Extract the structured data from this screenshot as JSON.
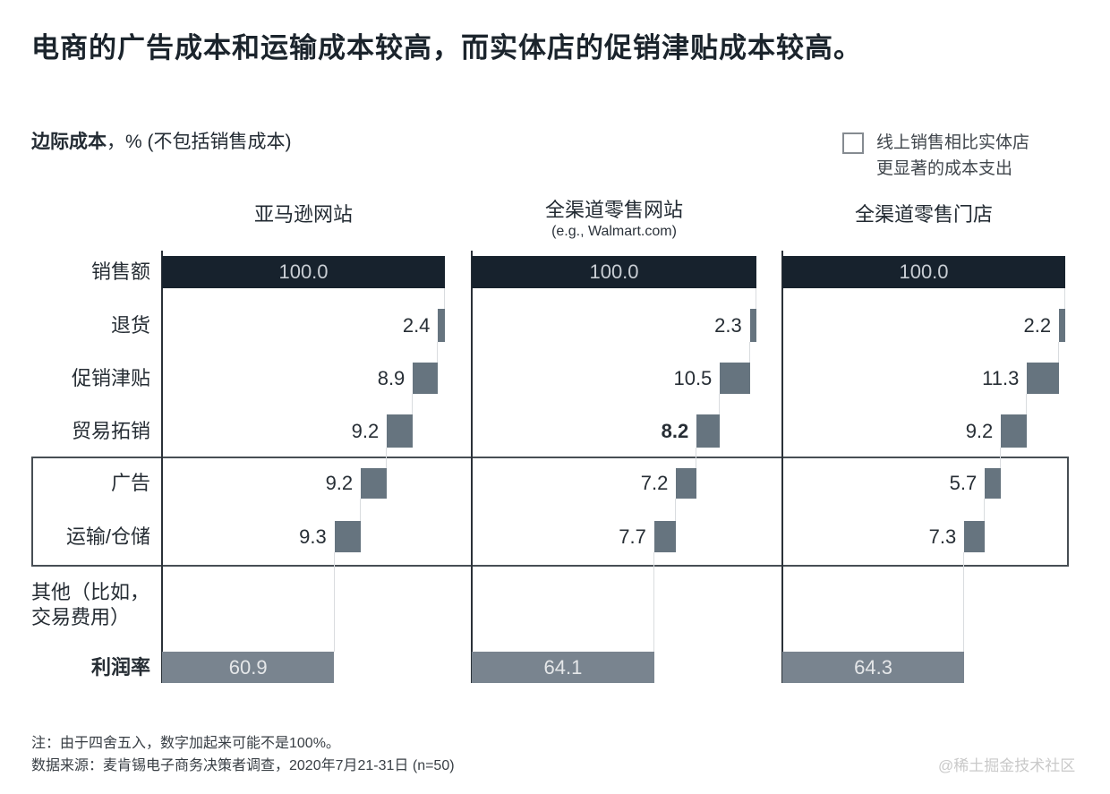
{
  "title": "电商的广告成本和运输成本较高，而实体店的促销津贴成本较高。",
  "subtitle": {
    "bold": "边际成本",
    "rest": "，% (不包括销售成本)"
  },
  "legend": {
    "line1": "线上销售相比实体店",
    "line2": "更显著的成本支出"
  },
  "rows": {
    "sales": "销售额",
    "returns": "退货",
    "promo": "促销津贴",
    "trade": "贸易拓销",
    "ads": "广告",
    "shipping": "运输/仓储",
    "other_line1": "其他（比如，",
    "other_line2": "交易费用）",
    "profit": "利润率"
  },
  "chart_data": {
    "type": "bar",
    "subtype": "horizontal-waterfall",
    "title": "边际成本，% (不包括销售成本)",
    "unit": "% of sales",
    "categories": [
      "销售额",
      "退货",
      "促销津贴",
      "贸易拓销",
      "广告",
      "运输/仓储",
      "其他（比如，交易费用）",
      "利润率"
    ],
    "highlighted_categories": [
      "广告",
      "运输/仓储"
    ],
    "legend_note": "线上销售相比实体店更显著的成本支出",
    "xlim": [
      0,
      100
    ],
    "series": [
      {
        "name": "亚马逊网站",
        "subtitle": "",
        "values": [
          100.0,
          2.4,
          8.9,
          9.2,
          9.2,
          9.3,
          null,
          60.9
        ],
        "bold_indices": []
      },
      {
        "name": "全渠道零售网站",
        "subtitle": "(e.g., Walmart.com)",
        "values": [
          100.0,
          2.3,
          10.5,
          8.2,
          7.2,
          7.7,
          null,
          64.1
        ],
        "bold_indices": [
          3
        ]
      },
      {
        "name": "全渠道零售门店",
        "subtitle": "",
        "values": [
          100.0,
          2.2,
          11.3,
          9.2,
          5.7,
          7.3,
          null,
          64.3
        ],
        "bold_indices": []
      }
    ]
  },
  "notes": {
    "line1": "注：由于四舍五入，数字加起来可能不是100%。",
    "line2": "数据来源：麦肯锡电子商务决策者调查，2020年7月21-31日 (n=50)"
  },
  "watermark": "@稀土掘金技术社区",
  "colors": {
    "sales_bar": "#17222d",
    "cost_bar": "#66747f",
    "profit_bar": "#79848f",
    "highlight_border": "#474e54"
  }
}
